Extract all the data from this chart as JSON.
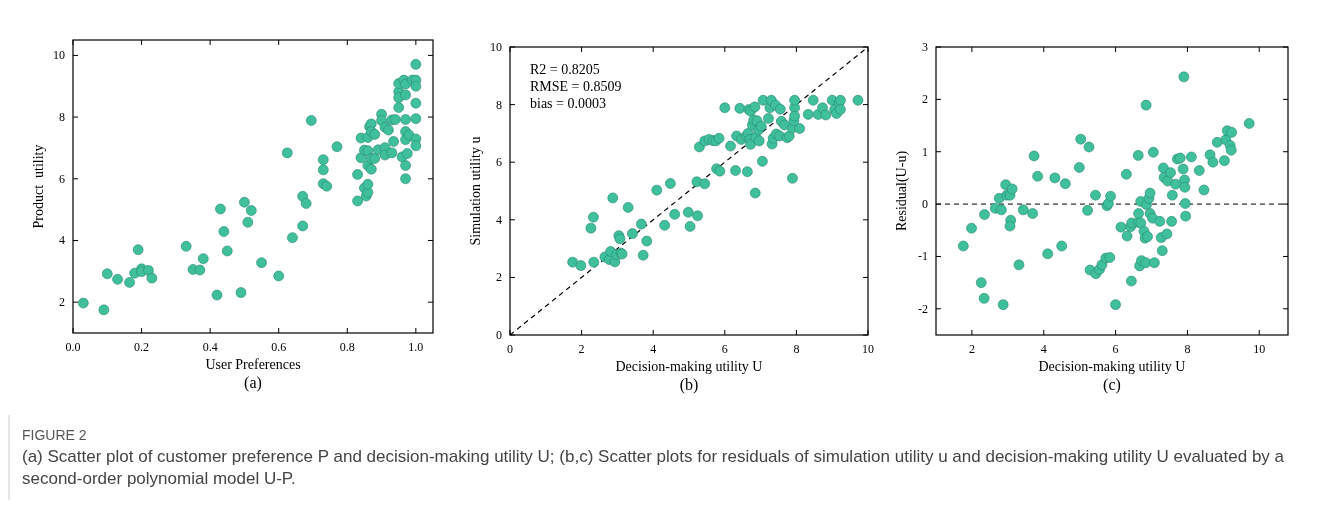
{
  "chart_data": [
    {
      "type": "scatter",
      "xlabel": "User Preferences",
      "ylabel": "Product  utility",
      "xlim": [
        0,
        1.05
      ],
      "ylim": [
        1,
        10.5
      ],
      "xticks": [
        {
          "value": 0,
          "label": "0.0"
        },
        {
          "value": 0.2,
          "label": "0.2"
        },
        {
          "value": 0.4,
          "label": "0.4"
        },
        {
          "value": 0.6,
          "label": "0.6"
        },
        {
          "value": 0.8,
          "label": "0.8"
        },
        {
          "value": 1,
          "label": "1.0"
        }
      ],
      "yticks": [
        2,
        4,
        6,
        8,
        10
      ],
      "marker": "circle",
      "annotations": [
        "(a)"
      ],
      "series": [
        {
          "type": "scatter",
          "color": "#3fbf9c",
          "x": [
            0.03,
            0.09,
            0.1,
            0.13,
            0.165,
            0.18,
            0.19,
            0.2,
            0.2,
            0.22,
            0.23,
            0.33,
            0.35,
            0.37,
            0.38,
            0.42,
            0.43,
            0.44,
            0.45,
            0.49,
            0.5,
            0.51,
            0.52,
            0.55,
            0.6,
            0.625,
            0.64,
            0.67,
            0.67,
            0.68,
            0.695,
            0.73,
            0.73,
            0.73,
            0.74,
            0.77,
            0.83,
            0.83,
            0.84,
            0.84,
            0.85,
            0.85,
            0.855,
            0.86,
            0.86,
            0.86,
            0.86,
            0.86,
            0.865,
            0.87,
            0.87,
            0.87,
            0.87,
            0.88,
            0.88,
            0.89,
            0.9,
            0.9,
            0.91,
            0.91,
            0.91,
            0.92,
            0.93,
            0.93,
            0.935,
            0.94,
            0.95,
            0.95,
            0.95,
            0.95,
            0.96,
            0.965,
            0.97,
            0.97,
            0.97,
            0.97,
            0.97,
            0.97,
            0.97,
            0.975,
            0.98,
            0.99,
            1,
            1,
            1,
            1,
            1,
            1,
            1
          ],
          "values": [
            1.97,
            1.75,
            2.92,
            2.74,
            2.64,
            2.94,
            3.7,
            3.08,
            2.99,
            3.03,
            2.78,
            3.81,
            3.06,
            3.04,
            3.41,
            2.23,
            5.02,
            4.29,
            3.66,
            2.31,
            5.24,
            4.59,
            4.97,
            3.28,
            2.85,
            6.84,
            4.09,
            5.43,
            4.47,
            5.2,
            7.89,
            6.62,
            6.29,
            5.84,
            5.76,
            7.04,
            5.28,
            6.14,
            7.32,
            6.68,
            6.93,
            5.7,
            5.44,
            5.56,
            6.43,
            6.91,
            5.82,
            7.34,
            7.69,
            7.78,
            6.66,
            6.31,
            7.53,
            7.44,
            6.66,
            6.94,
            8.09,
            7.89,
            7.67,
            7.01,
            6.77,
            7.58,
            7.91,
            6.84,
            7.21,
            7.92,
            8.82,
            8.63,
            8.31,
            9.09,
            6.71,
            9.2,
            9.07,
            7.53,
            6.43,
            7.27,
            8.72,
            7.92,
            6.0,
            6.82,
            7.42,
            9.2,
            9.71,
            9.2,
            9.0,
            8.45,
            7.95,
            7.29,
            7.07
          ]
        }
      ]
    },
    {
      "type": "scatter",
      "xlabel": "Decision-making utility U",
      "ylabel": "Simulation utility u",
      "xlim": [
        0,
        10
      ],
      "ylim": [
        0,
        10
      ],
      "xticks": [
        0,
        2,
        4,
        6,
        8,
        10
      ],
      "yticks": [
        0,
        2,
        4,
        6,
        8,
        10
      ],
      "annotations": [
        "R2 = 0.8205",
        "RMSE = 0.8509",
        "bias = 0.0003",
        "(b)"
      ],
      "series": [
        {
          "type": "line",
          "color": "#000000",
          "line_style": "dashed",
          "x": [
            0,
            10
          ],
          "values": [
            0,
            10
          ]
        },
        {
          "type": "scatter",
          "marker": "circle",
          "color": "#3fbf9c",
          "x": [
            1.75,
            1.98,
            2.26,
            2.33,
            2.34,
            2.65,
            2.77,
            2.81,
            2.87,
            2.93,
            2.98,
            3.04,
            3.07,
            3.1,
            3.13,
            3.3,
            3.42,
            3.67,
            3.72,
            3.82,
            4.1,
            4.32,
            4.48,
            4.6,
            4.98,
            5.03,
            5.22,
            5.24,
            5.29,
            5.44,
            5.44,
            5.56,
            5.67,
            5.75,
            5.77,
            5.84,
            5.86,
            6.0,
            6.16,
            6.3,
            6.33,
            6.42,
            6.46,
            6.6,
            6.63,
            6.65,
            6.67,
            6.7,
            6.72,
            6.72,
            6.77,
            6.81,
            6.84,
            6.85,
            6.87,
            6.9,
            6.94,
            6.96,
            7.02,
            7.05,
            7.07,
            7.22,
            7.26,
            7.3,
            7.32,
            7.35,
            7.42,
            7.44,
            7.53,
            7.55,
            7.58,
            7.67,
            7.74,
            7.8,
            7.89,
            7.89,
            7.93,
            7.95,
            7.95,
            7.95,
            8.09,
            8.33,
            8.47,
            8.61,
            8.73,
            8.82,
            9.0,
            9.07,
            9.12,
            9.19,
            9.23,
            9.23,
            9.72
          ],
          "values": [
            2.53,
            2.41,
            3.71,
            4.09,
            2.53,
            2.71,
            2.62,
            2.9,
            4.76,
            2.54,
            2.79,
            3.45,
            3.34,
            2.84,
            2.81,
            4.43,
            3.52,
            3.85,
            2.77,
            3.26,
            5.03,
            3.81,
            5.26,
            4.19,
            4.26,
            3.77,
            5.32,
            4.14,
            6.53,
            5.25,
            6.74,
            6.79,
            6.75,
            6.74,
            5.77,
            6.83,
            5.69,
            7.89,
            6.56,
            5.71,
            6.91,
            7.87,
            6.79,
            6.91,
            5.67,
            7.0,
            7.83,
            6.79,
            7.77,
            6.62,
            7.29,
            7.46,
            7.92,
            4.93,
            6.86,
            7.44,
            7.12,
            6.74,
            7.25,
            6.03,
            8.15,
            7.52,
            7.89,
            8.15,
            6.63,
            6.83,
            7.98,
            6.98,
            6.91,
            7.84,
            7.42,
            7.29,
            6.85,
            6.91,
            5.44,
            7.19,
            7.44,
            7.89,
            8.15,
            7.6,
            7.17,
            7.66,
            8.15,
            7.66,
            7.89,
            7.64,
            8.15,
            7.83,
            7.69,
            8.06,
            8.15,
            7.83,
            8.15
          ]
        }
      ]
    },
    {
      "type": "scatter",
      "xlabel": "Decision-making utility U",
      "ylabel": "Residual(U-u)",
      "xlim": [
        1,
        10.8
      ],
      "ylim": [
        -2.5,
        3
      ],
      "xticks": [
        2,
        4,
        6,
        8,
        10
      ],
      "yticks": [
        -2,
        -1,
        0,
        1,
        2,
        3
      ],
      "marker": "circle",
      "annotations": [
        "(c)"
      ],
      "ref_lines": [
        {
          "axis": "y",
          "value": 0,
          "color": "#000000",
          "line_style": "dashed"
        }
      ],
      "series": [
        {
          "type": "scatter",
          "color": "#3fbf9c",
          "x": [
            1.76,
            1.99,
            2.26,
            2.34,
            2.35,
            2.65,
            2.76,
            2.82,
            2.87,
            2.94,
            2.97,
            3.06,
            3.08,
            3.06,
            3.12,
            3.31,
            3.43,
            3.69,
            3.73,
            3.83,
            4.11,
            4.31,
            4.5,
            4.6,
            4.99,
            5.03,
            5.22,
            5.26,
            5.29,
            5.44,
            5.45,
            5.55,
            5.62,
            5.73,
            5.76,
            5.8,
            5.84,
            5.86,
            6.0,
            6.15,
            6.3,
            6.32,
            6.42,
            6.44,
            6.45,
            6.63,
            6.63,
            6.64,
            6.67,
            6.7,
            6.7,
            6.72,
            6.79,
            6.82,
            6.84,
            6.85,
            6.86,
            6.89,
            6.93,
            6.96,
            6.96,
            7.03,
            7.05,
            7.08,
            7.23,
            7.27,
            7.3,
            7.33,
            7.35,
            7.43,
            7.45,
            7.53,
            7.56,
            7.58,
            7.67,
            7.72,
            7.8,
            7.88,
            7.9,
            7.92,
            7.93,
            7.94,
            7.95,
            8.11,
            8.33,
            8.46,
            8.63,
            8.71,
            8.83,
            9.03,
            9.07,
            9.11,
            9.19,
            9.22,
            9.23,
            9.72
          ],
          "values": [
            -0.8,
            -0.46,
            -1.5,
            -1.8,
            -0.2,
            -0.08,
            0.11,
            -0.11,
            -1.92,
            0.37,
            0.17,
            0.17,
            -0.31,
            -0.42,
            0.29,
            -1.16,
            -0.11,
            -0.18,
            0.92,
            0.53,
            -0.95,
            0.5,
            -0.8,
            0.39,
            0.7,
            1.24,
            -0.12,
            1.09,
            -1.26,
            0.17,
            -1.33,
            -1.25,
            -1.16,
            -1.03,
            -0.03,
            0.01,
            -1.02,
            0.15,
            -1.92,
            -0.44,
            0.57,
            -0.61,
            -0.43,
            -1.47,
            -0.36,
            0.93,
            -0.35,
            -0.18,
            -1.18,
            0.05,
            -0.36,
            -1.08,
            -0.52,
            -0.65,
            -1.12,
            1.89,
            -0.01,
            -0.62,
            0.11,
            0.21,
            -0.18,
            -0.27,
            0.99,
            -1.12,
            -0.33,
            -0.64,
            -0.89,
            0.69,
            0.51,
            -0.57,
            0.44,
            0.6,
            -0.33,
            0.17,
            0.38,
            0.86,
            0.88,
            0.67,
            2.43,
            0.46,
            0.32,
            0.01,
            -0.23,
            0.9,
            0.64,
            0.27,
            0.94,
            0.8,
            1.18,
            0.83,
            1.23,
            1.4,
            1.12,
            1.03,
            1.37,
            1.54
          ]
        }
      ]
    },
    {
      "type": "other",
      "title": "FIGURE 2",
      "subtitle": "(a) Scatter plot of customer preference P and decision-making utility U; (b,c) Scatter plots for residuals of simulation utility u and decision-making utility U evaluated by a second-order polynomial model U-P."
    }
  ]
}
